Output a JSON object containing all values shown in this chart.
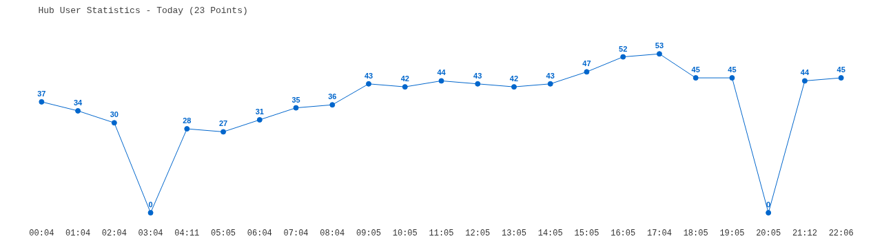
{
  "chart_data": {
    "type": "line",
    "title": "Hub User Statistics - Today (23 Points)",
    "categories": [
      "00:04",
      "01:04",
      "02:04",
      "03:04",
      "04:11",
      "05:05",
      "06:04",
      "07:04",
      "08:04",
      "09:05",
      "10:05",
      "11:05",
      "12:05",
      "13:05",
      "14:05",
      "15:05",
      "16:05",
      "17:04",
      "18:05",
      "19:05",
      "20:05",
      "21:12",
      "22:06"
    ],
    "series": [
      {
        "color": "#0066cc",
        "values": [
          37,
          34,
          30,
          0,
          28,
          27,
          31,
          35,
          36,
          43,
          42,
          44,
          43,
          42,
          43,
          47,
          52,
          53,
          45,
          45,
          0,
          44,
          45
        ]
      }
    ],
    "data_labels": true,
    "marker": "circle",
    "line_style": "solid",
    "tick_labels": "x"
  }
}
